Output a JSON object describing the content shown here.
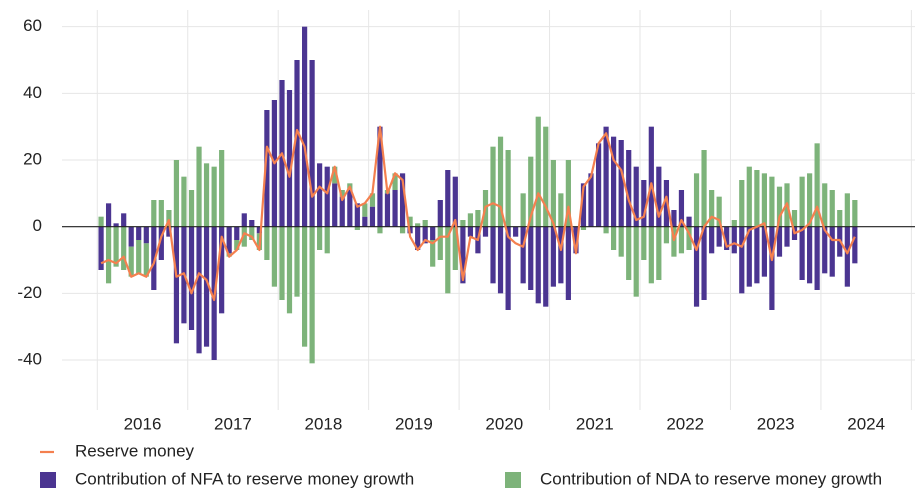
{
  "chart_data": {
    "type": "bar",
    "x": [
      2016.042,
      2016.125,
      2016.208,
      2016.292,
      2016.375,
      2016.458,
      2016.542,
      2016.625,
      2016.708,
      2016.792,
      2016.875,
      2016.958,
      2017.042,
      2017.125,
      2017.208,
      2017.292,
      2017.375,
      2017.458,
      2017.542,
      2017.625,
      2017.708,
      2017.792,
      2017.875,
      2017.958,
      2018.042,
      2018.125,
      2018.208,
      2018.292,
      2018.375,
      2018.458,
      2018.542,
      2018.625,
      2018.708,
      2018.792,
      2018.875,
      2018.958,
      2019.042,
      2019.125,
      2019.208,
      2019.292,
      2019.375,
      2019.458,
      2019.542,
      2019.625,
      2019.708,
      2019.792,
      2019.875,
      2019.958,
      2020.042,
      2020.125,
      2020.208,
      2020.292,
      2020.375,
      2020.458,
      2020.542,
      2020.625,
      2020.708,
      2020.792,
      2020.875,
      2020.958,
      2021.042,
      2021.125,
      2021.208,
      2021.292,
      2021.375,
      2021.458,
      2021.542,
      2021.625,
      2021.708,
      2021.792,
      2021.875,
      2021.958,
      2022.042,
      2022.125,
      2022.208,
      2022.292,
      2022.375,
      2022.458,
      2022.542,
      2022.625,
      2022.708,
      2022.792,
      2022.875,
      2022.958,
      2023.042,
      2023.125,
      2023.208,
      2023.292,
      2023.375,
      2023.458,
      2023.542,
      2023.625,
      2023.708,
      2023.792,
      2023.875,
      2023.958,
      2024.042,
      2024.125,
      2024.208,
      2024.292,
      2024.375
    ],
    "series": [
      {
        "name": "Reserve money",
        "type": "line",
        "color": "#f4804f",
        "values": [
          -11,
          -10,
          -11,
          -9,
          -15,
          -14,
          -15,
          -11,
          -3,
          2,
          -15,
          -14,
          -20,
          -14,
          -16,
          -22,
          -3,
          -9,
          -7,
          -2,
          -3,
          -7,
          24,
          19,
          22,
          15,
          29,
          24,
          9,
          12,
          10,
          18,
          8,
          12,
          6,
          7,
          10,
          30,
          10,
          16,
          14,
          -3,
          -7,
          -4,
          -5,
          -3,
          -3,
          2,
          -16,
          -3,
          -4,
          6,
          7,
          6,
          -3,
          -5,
          -6,
          3,
          10,
          6,
          1,
          -7,
          6,
          -8,
          12,
          15,
          25,
          28,
          20,
          17,
          8,
          2,
          3,
          13,
          3,
          9,
          -4,
          2,
          -2,
          -7,
          0,
          3,
          2,
          -6,
          -5,
          -6,
          -1,
          0,
          1,
          -10,
          3,
          7,
          -2,
          -1,
          1,
          6,
          -1,
          -4,
          -4,
          -8,
          -3
        ]
      },
      {
        "name": "Contribution of NFA to reserve money growth",
        "type": "bar",
        "color": "#4b3591",
        "values": [
          -13,
          7,
          1,
          4,
          -6,
          -4,
          -5,
          -19,
          -10,
          -3,
          -35,
          -29,
          -31,
          -38,
          -36,
          -40,
          -26,
          -8,
          -4,
          4,
          2,
          -2,
          35,
          38,
          44,
          41,
          50,
          60,
          50,
          19,
          18,
          13,
          9,
          11,
          7,
          3,
          6,
          30,
          10,
          11,
          16,
          -2,
          -7,
          -5,
          -4,
          8,
          17,
          15,
          -17,
          -3,
          -8,
          -3,
          -17,
          -20,
          -25,
          -3,
          -17,
          -19,
          -23,
          -24,
          -18,
          -17,
          -22,
          -8,
          13,
          16,
          25,
          30,
          27,
          26,
          23,
          18,
          14,
          30,
          18,
          14,
          5,
          11,
          3,
          -24,
          -22,
          -8,
          -6,
          -7,
          -8,
          -20,
          -18,
          -17,
          -15,
          -25,
          -9,
          -6,
          -4,
          -16,
          -17,
          -19,
          -14,
          -15,
          -9,
          -18,
          -11
        ]
      },
      {
        "name": "Contribution of NDA to reserve money growth",
        "type": "bar",
        "color": "#7db37a",
        "values": [
          3,
          -17,
          -12,
          -13,
          -9,
          -10,
          -10,
          8,
          8,
          5,
          20,
          15,
          11,
          24,
          19,
          18,
          23,
          -1,
          -3,
          -6,
          -4,
          -5,
          -10,
          -18,
          -22,
          -26,
          -21,
          -36,
          -41,
          -7,
          -8,
          5,
          2,
          2,
          -1,
          4,
          4,
          -2,
          1,
          5,
          -2,
          3,
          1,
          2,
          -8,
          -10,
          -20,
          -13,
          2,
          4,
          5,
          11,
          24,
          27,
          23,
          0,
          10,
          21,
          33,
          30,
          20,
          10,
          20,
          0,
          -1,
          0,
          0,
          -2,
          -7,
          -9,
          -16,
          -21,
          -10,
          -17,
          -16,
          -5,
          -9,
          -8,
          -7,
          16,
          23,
          11,
          9,
          0,
          2,
          14,
          18,
          17,
          16,
          15,
          12,
          13,
          5,
          15,
          16,
          25,
          13,
          11,
          5,
          10,
          8
        ]
      }
    ],
    "xlim": [
      2015.61,
      2025.04
    ],
    "xticks": [
      {
        "value": 2016.5,
        "label": "2016"
      },
      {
        "value": 2017.5,
        "label": "2017"
      },
      {
        "value": 2018.5,
        "label": "2018"
      },
      {
        "value": 2019.5,
        "label": "2019"
      },
      {
        "value": 2020.5,
        "label": "2020"
      },
      {
        "value": 2021.5,
        "label": "2021"
      },
      {
        "value": 2022.5,
        "label": "2022"
      },
      {
        "value": 2023.5,
        "label": "2023"
      },
      {
        "value": 2024.5,
        "label": "2024"
      }
    ],
    "xgrid": [
      2016,
      2017,
      2018,
      2019,
      2020,
      2021,
      2022,
      2023,
      2024,
      2025
    ],
    "ylim": [
      -55,
      65
    ],
    "yticks": [
      -40,
      -20,
      0,
      20,
      40,
      60
    ],
    "grid": true
  }
}
